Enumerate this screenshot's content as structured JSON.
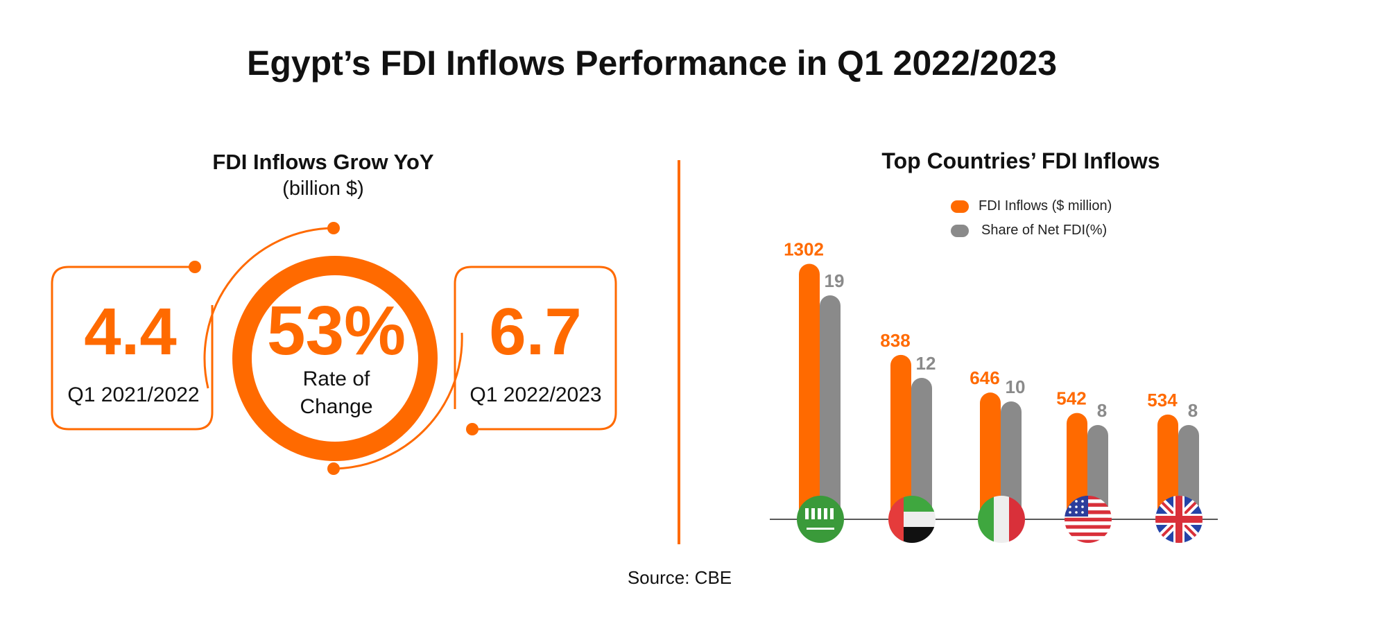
{
  "title": "Egypt’s FDI Inflows Performance in Q1 2022/2023",
  "left_panel": {
    "title": "FDI Inflows Grow YoY",
    "unit": "(billion $)",
    "before": {
      "value": "4.4",
      "label": "Q1 2021/2022"
    },
    "after": {
      "value": "6.7",
      "label": "Q1 2022/2023"
    },
    "change": {
      "value": "53%",
      "label_line1": "Rate of",
      "label_line2": "Change"
    }
  },
  "source": "Source: CBE",
  "colors": {
    "orange": "#ff6a00",
    "gray": "#8a8a8a"
  },
  "chart_data": {
    "type": "bar",
    "title": "Top Countries’ FDI Inflows",
    "categories": [
      "Saudi Arabia",
      "UAE",
      "Italy",
      "USA",
      "UK"
    ],
    "category_icons": [
      "saudi-flag-icon",
      "uae-flag-icon",
      "italy-flag-icon",
      "usa-flag-icon",
      "uk-flag-icon"
    ],
    "series": [
      {
        "name": "FDI Inflows ($ million)",
        "values": [
          1302,
          838,
          646,
          542,
          534
        ],
        "color": "#ff6a00"
      },
      {
        "name": "Share of Net FDI(%)",
        "values": [
          19,
          12,
          10,
          8,
          8
        ],
        "color": "#8a8a8a"
      }
    ],
    "legend": "top-right",
    "grid": false,
    "data_labels": true
  }
}
